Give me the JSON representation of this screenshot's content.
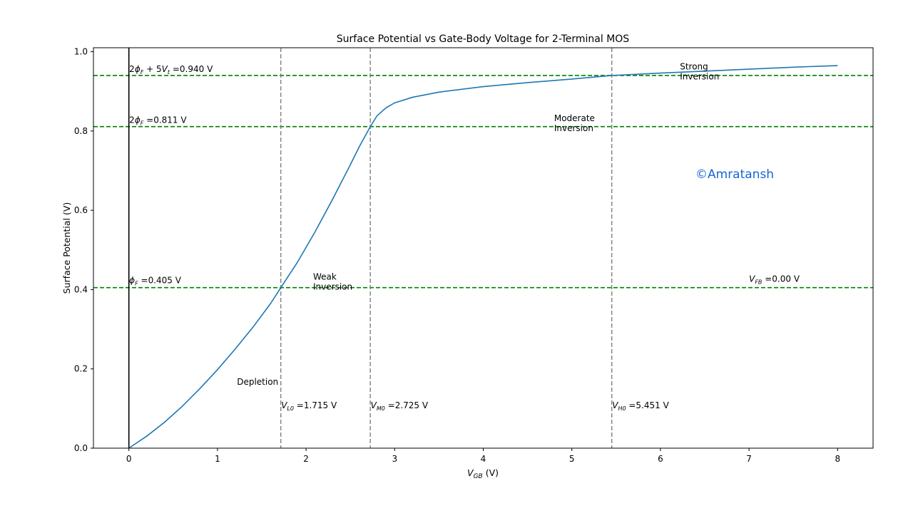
{
  "chart_data": {
    "type": "line",
    "title": "Surface Potential  vs  Gate-Body Voltage for 2-Terminal MOS",
    "xlabel": {
      "main": "V",
      "sub": "GB",
      "rest": " (V)"
    },
    "ylabel": "Surface Potential (V)",
    "xlim": [
      -0.4,
      8.4
    ],
    "ylim": [
      0.0,
      1.01
    ],
    "xticks": [
      0,
      1,
      2,
      3,
      4,
      5,
      6,
      7,
      8
    ],
    "xtick_labels": [
      "0",
      "1",
      "2",
      "3",
      "4",
      "5",
      "6",
      "7",
      "8"
    ],
    "yticks": [
      0.0,
      0.2,
      0.4,
      0.6,
      0.8,
      1.0
    ],
    "ytick_labels": [
      "0.0",
      "0.2",
      "0.4",
      "0.6",
      "0.8",
      "1.0"
    ],
    "grid": false,
    "series": [
      {
        "color": "#1f77b4",
        "x": [
          0.0,
          0.2,
          0.4,
          0.6,
          0.8,
          1.0,
          1.2,
          1.4,
          1.6,
          1.715,
          1.9,
          2.1,
          2.3,
          2.5,
          2.6,
          2.725,
          2.8,
          2.9,
          3.0,
          3.2,
          3.5,
          4.0,
          4.5,
          5.0,
          5.451,
          6.0,
          6.5,
          7.0,
          7.5,
          8.0
        ],
        "y": [
          0.0,
          0.03,
          0.065,
          0.105,
          0.15,
          0.198,
          0.25,
          0.305,
          0.365,
          0.405,
          0.468,
          0.545,
          0.628,
          0.715,
          0.76,
          0.811,
          0.838,
          0.858,
          0.871,
          0.885,
          0.898,
          0.912,
          0.922,
          0.931,
          0.94,
          0.946,
          0.951,
          0.956,
          0.961,
          0.965
        ]
      }
    ],
    "hlines": [
      {
        "y": 0.94,
        "color": "#008000",
        "label": {
          "prefix": "2",
          "phi_sub": "F",
          "mid": " + 5",
          "v_sub": "t",
          "value": " =0.940 V"
        }
      },
      {
        "y": 0.811,
        "color": "#008000",
        "label": {
          "prefix": "2",
          "phi_sub": "F",
          "value": " =0.811 V"
        }
      },
      {
        "y": 0.405,
        "color": "#008000",
        "label": {
          "prefix": "",
          "phi_sub": "F",
          "value": " =0.405 V"
        }
      }
    ],
    "vlines": [
      {
        "x": 1.715,
        "color": "#808080",
        "label": {
          "main": "V",
          "sub": "L0",
          "value": " =1.715 V"
        }
      },
      {
        "x": 2.725,
        "color": "#808080",
        "label": {
          "main": "V",
          "sub": "M0",
          "value": " =2.725 V"
        }
      },
      {
        "x": 5.451,
        "color": "#808080",
        "label": {
          "main": "V",
          "sub": "H0",
          "value": " =5.451 V"
        }
      }
    ],
    "axis_line_x": 0,
    "region_labels": [
      {
        "lines": [
          "Depletion"
        ],
        "x": 1.22,
        "y": 0.16
      },
      {
        "lines": [
          "Weak",
          "Inversion"
        ],
        "x": 2.08,
        "y": 0.425
      },
      {
        "lines": [
          "Moderate",
          "Inversion"
        ],
        "x": 4.8,
        "y": 0.825
      },
      {
        "lines": [
          "Strong",
          "Inversion"
        ],
        "x": 6.22,
        "y": 0.955
      }
    ],
    "vfb_label": {
      "main": "V",
      "sub": "FB",
      "value": " =0.00 V",
      "x": 7.0,
      "y": 0.42
    },
    "watermark": {
      "text": "©Amratansh",
      "color": "#1565d8"
    }
  }
}
